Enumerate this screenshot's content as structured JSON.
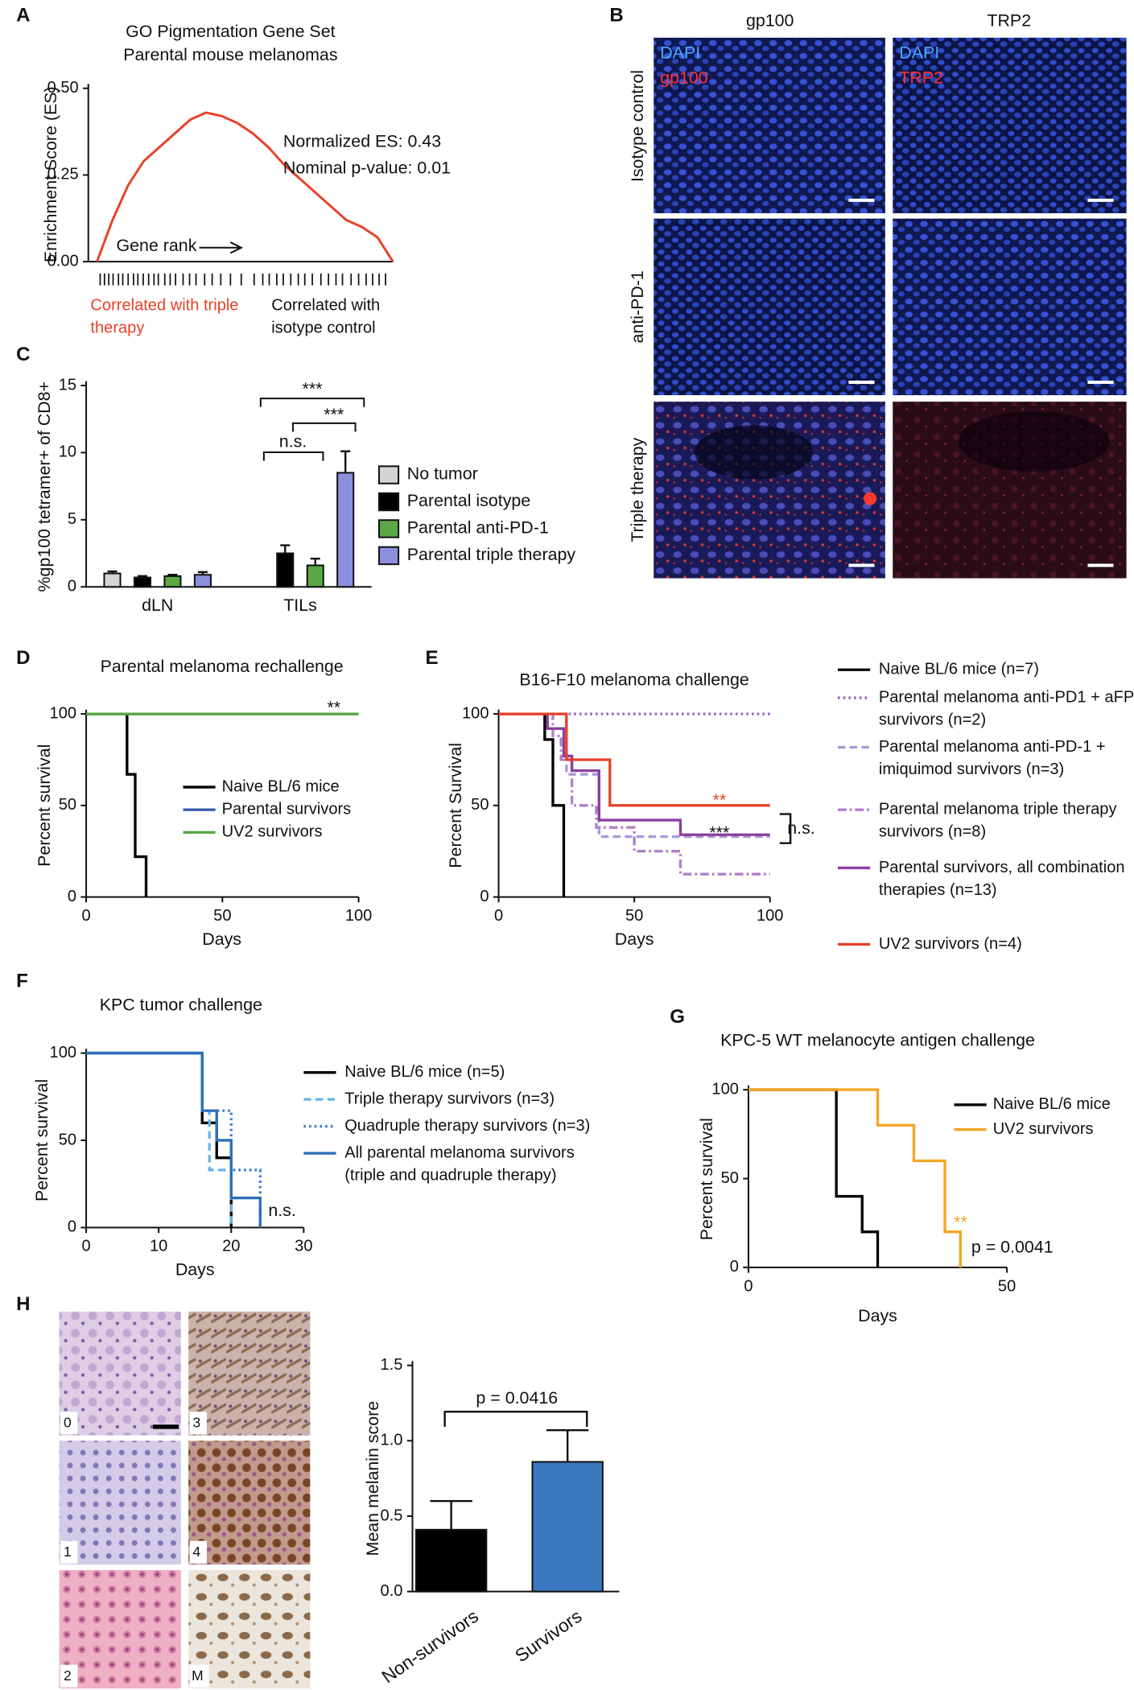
{
  "panel_labels": [
    "A",
    "B",
    "C",
    "D",
    "E",
    "F",
    "G",
    "H"
  ],
  "micrographs_b": {
    "columns": [
      "gp100",
      "TRP2"
    ],
    "rows": [
      "Isotype control",
      "anti-PD-1",
      "Triple therapy"
    ],
    "stain_labels": [
      [
        "DAPI",
        "gp100"
      ],
      [
        "DAPI",
        "TRP2"
      ]
    ]
  },
  "micrographs_h": {
    "labels": [
      "0",
      "3",
      "1",
      "4",
      "2",
      "M"
    ]
  },
  "chart_data": [
    {
      "type": "line",
      "title": "GO Pigmentation Gene Set",
      "subtitle": "Parental mouse melanomas",
      "ylabel": "Enrichment Score (ES)",
      "values": [
        0,
        0.12,
        0.22,
        0.29,
        0.33,
        0.37,
        0.41,
        0.43,
        0.42,
        0.4,
        0.37,
        0.33,
        0.28,
        0.24,
        0.2,
        0.16,
        0.12,
        0.1,
        0.07,
        0
      ],
      "color": "#e8412a",
      "ylim": [
        0,
        0.5
      ],
      "yticks": [
        {
          "value": 0,
          "label": "0.00"
        },
        {
          "value": 0.25,
          "label": "0.25"
        },
        {
          "value": 0.5,
          "label": "0.50"
        }
      ],
      "annotations": [
        {
          "text": "Normalized ES: 0.43",
          "color": "#111111"
        },
        {
          "text": "Nominal p-value: 0.01",
          "color": "#111111"
        },
        {
          "text": "Gene rank",
          "color": "#111111"
        },
        {
          "text": "Correlated with triple therapy",
          "color": "#e8412a"
        },
        {
          "text": "Correlated with isotype control",
          "color": "#111111"
        }
      ]
    },
    {
      "type": "bar",
      "ylabel": "%gp100 tetramer+ of CD8+",
      "categories": [
        "dLN",
        "TILs"
      ],
      "series": [
        {
          "name": "No tumor",
          "color": "#d4d4d4",
          "values": [
            1.0,
            null
          ],
          "errors": [
            0.15,
            null
          ]
        },
        {
          "name": "Parental isotype",
          "color": "#000000",
          "values": [
            0.7,
            2.5
          ],
          "errors": [
            0.1,
            0.6
          ]
        },
        {
          "name": "Parental anti-PD-1",
          "color": "#5aa845",
          "values": [
            0.8,
            1.6
          ],
          "errors": [
            0.1,
            0.5
          ]
        },
        {
          "name": "Parental triple therapy",
          "color": "#8a90dc",
          "values": [
            0.9,
            8.5
          ],
          "errors": [
            0.2,
            1.6
          ]
        }
      ],
      "ylim": [
        0,
        15
      ],
      "yticks": [
        0,
        5,
        10,
        15
      ],
      "annotations": [
        {
          "text": "***",
          "color": "#111111"
        },
        {
          "text": "***",
          "color": "#111111"
        },
        {
          "text": "n.s.",
          "color": "#111111"
        }
      ]
    },
    {
      "type": "line",
      "step": true,
      "title": "Parental melanoma rechallenge",
      "xlabel": "Days",
      "ylabel": "Percent survival",
      "xlim": [
        0,
        100
      ],
      "xticks": [
        0,
        50,
        100
      ],
      "ylim": [
        0,
        100
      ],
      "yticks": [
        0,
        50,
        100
      ],
      "series": [
        {
          "name": "Naive BL/6 mice",
          "color": "#000000",
          "style": "solid",
          "x": [
            0,
            15,
            18,
            22
          ],
          "values": [
            100,
            67,
            22,
            0
          ]
        },
        {
          "name": "Parental survivors",
          "color": "#3a5fb0",
          "style": "solid",
          "x": [
            0,
            100
          ],
          "values": [
            100,
            100
          ]
        },
        {
          "name": "UV2 survivors",
          "color": "#5aa845",
          "style": "solid",
          "x": [
            0,
            100
          ],
          "values": [
            100,
            100
          ]
        }
      ],
      "annotations": [
        {
          "text": "**",
          "color": "#111111"
        }
      ]
    },
    {
      "type": "line",
      "step": true,
      "title": "B16-F10 melanoma challenge",
      "xlabel": "Days",
      "ylabel": "Percent Survival",
      "xlim": [
        0,
        100
      ],
      "xticks": [
        0,
        50,
        100
      ],
      "ylim": [
        0,
        100
      ],
      "yticks": [
        0,
        50,
        100
      ],
      "series": [
        {
          "name": "Naive BL/6 mice (n=7)",
          "color": "#000000",
          "style": "solid",
          "x": [
            0,
            17,
            20,
            24
          ],
          "values": [
            100,
            86,
            50,
            0
          ]
        },
        {
          "name": "Parental melanoma anti-PD1 + aFP survivors (n=2)",
          "color": "#a060c0",
          "style": "dotted",
          "x": [
            0,
            100
          ],
          "values": [
            100,
            100
          ]
        },
        {
          "name": "Parental melanoma anti-PD-1 + imiquimod survivors (n=3)",
          "color": "#a89ad8",
          "style": "dashed",
          "x": [
            0,
            25,
            37,
            100
          ],
          "values": [
            100,
            67,
            33,
            33
          ]
        },
        {
          "name": "Parental melanoma triple therapy survivors (n=8)",
          "color": "#b080c8",
          "style": "dashdot",
          "x": [
            0,
            20,
            23,
            27,
            36,
            50,
            67,
            100
          ],
          "values": [
            100,
            88,
            75,
            50,
            38,
            25,
            12.5,
            12.5
          ]
        },
        {
          "name": "Parental survivors, all combination therapies (n=13)",
          "color": "#8b3fa0",
          "style": "solid",
          "x": [
            0,
            18,
            24,
            27,
            37,
            67,
            100
          ],
          "values": [
            100,
            92,
            77,
            69,
            42,
            34,
            34
          ]
        },
        {
          "name": "UV2 survivors (n=4)",
          "color": "#e8412a",
          "style": "solid",
          "x": [
            0,
            25,
            41,
            100
          ],
          "values": [
            100,
            75,
            50,
            50
          ]
        }
      ],
      "annotations": [
        {
          "text": "**",
          "color": "#e8412a"
        },
        {
          "text": "***",
          "color": "#111111"
        },
        {
          "text": "n.s.",
          "color": "#111111"
        }
      ]
    },
    {
      "type": "line",
      "step": true,
      "title": "KPC tumor challenge",
      "xlabel": "Days",
      "ylabel": "Percent survival",
      "xlim": [
        0,
        30
      ],
      "xticks": [
        0,
        10,
        20,
        30
      ],
      "ylim": [
        0,
        100
      ],
      "yticks": [
        0,
        50,
        100
      ],
      "series": [
        {
          "name": "Naive BL/6 mice (n=5)",
          "color": "#000000",
          "style": "solid",
          "x": [
            0,
            16,
            18,
            20
          ],
          "values": [
            100,
            60,
            40,
            0
          ]
        },
        {
          "name": "Triple therapy survivors (n=3)",
          "color": "#6ab4e8",
          "style": "dashed",
          "x": [
            0,
            16,
            17,
            20
          ],
          "values": [
            100,
            67,
            33,
            0
          ]
        },
        {
          "name": "Quadruple therapy survivors (n=3)",
          "color": "#3a7fd0",
          "style": "dotted",
          "x": [
            0,
            16,
            20,
            24
          ],
          "values": [
            100,
            67,
            33,
            0
          ]
        },
        {
          "name": "All parental melanoma survivors (triple and quadruple therapy)",
          "color": "#2e6fb8",
          "style": "solid",
          "x": [
            0,
            16,
            18,
            20,
            24
          ],
          "values": [
            100,
            67,
            50,
            17,
            0
          ]
        }
      ],
      "annotations": [
        {
          "text": "n.s.",
          "color": "#111111"
        }
      ]
    },
    {
      "type": "line",
      "step": true,
      "title": "KPC-5 WT melanocyte antigen challenge",
      "xlabel": "Days",
      "ylabel": "Percent survival",
      "xlim": [
        0,
        50
      ],
      "xticks": [
        0,
        50
      ],
      "ylim": [
        0,
        100
      ],
      "yticks": [
        0,
        50,
        100
      ],
      "series": [
        {
          "name": "Naive BL/6 mice",
          "color": "#000000",
          "style": "solid",
          "x": [
            0,
            17,
            22,
            25
          ],
          "values": [
            100,
            40,
            20,
            0
          ]
        },
        {
          "name": "UV2 survivors",
          "color": "#f5a623",
          "style": "solid",
          "x": [
            0,
            25,
            32,
            38,
            41
          ],
          "values": [
            100,
            80,
            60,
            20,
            0
          ]
        }
      ],
      "annotations": [
        {
          "text": "**",
          "color": "#f5a623"
        },
        {
          "text": "p = 0.0041",
          "color": "#111111"
        }
      ]
    },
    {
      "type": "bar",
      "ylabel": "Mean melanin score",
      "categories": [
        "Non-survivors",
        "Survivors"
      ],
      "values": [
        0.41,
        0.86
      ],
      "errors": [
        0.19,
        0.21
      ],
      "colors": [
        "#000000",
        "#3a78c0"
      ],
      "ylim": [
        0,
        1.5
      ],
      "yticks": [
        {
          "value": 0,
          "label": "0.0"
        },
        {
          "value": 0.5,
          "label": "0.5"
        },
        {
          "value": 1,
          "label": "1.0"
        },
        {
          "value": 1.5,
          "label": "1.5"
        }
      ],
      "annotations": [
        {
          "text": "p = 0.0416",
          "color": "#111111"
        }
      ]
    }
  ]
}
